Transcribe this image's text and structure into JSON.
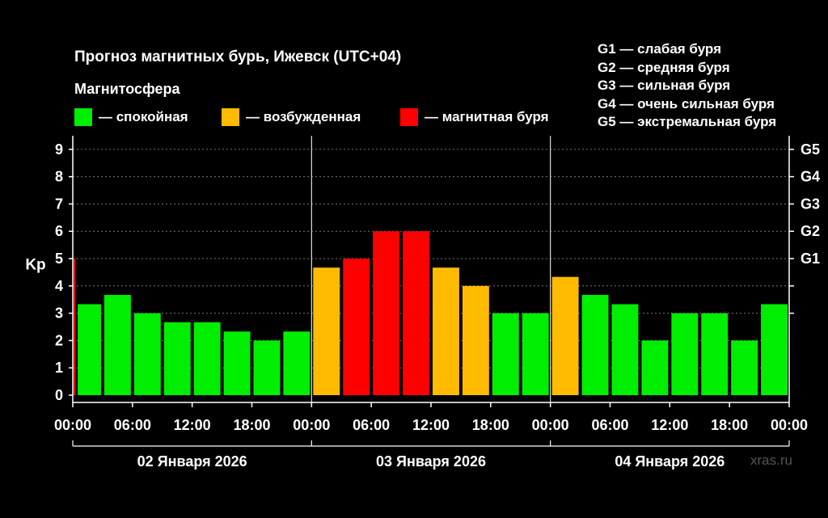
{
  "title": "Прогноз магнитных бурь, Ижевск (UTC+04)",
  "legend": {
    "heading": "Магнитосфера",
    "items": [
      {
        "label": "— спокойная",
        "color": "#00ee00"
      },
      {
        "label": "— возбужденная",
        "color": "#ffbb00"
      },
      {
        "label": "— магнитная буря",
        "color": "#ff0000"
      }
    ]
  },
  "g_scale": [
    "G1 — слабая буря",
    "G2 — средняя буря",
    "G3 — сильная буря",
    "G4 — очень сильная буря",
    "G5 — экстремальная буря"
  ],
  "watermark": "xras.ru",
  "chart_data": {
    "type": "bar",
    "ylabel": "Kp",
    "ylim": [
      0,
      9.5
    ],
    "y_ticks": [
      "0",
      "1",
      "2",
      "3",
      "4",
      "5",
      "6",
      "7",
      "8",
      "9"
    ],
    "right_ticks": [
      {
        "label": "G1",
        "kp": 5
      },
      {
        "label": "G2",
        "kp": 6
      },
      {
        "label": "G3",
        "kp": 7
      },
      {
        "label": "G4",
        "kp": 8
      },
      {
        "label": "G5",
        "kp": 9
      }
    ],
    "right_minor_ticks": [
      3,
      4
    ],
    "x_tick_labels": [
      "00:00",
      "06:00",
      "12:00",
      "18:00",
      "00:00",
      "06:00",
      "12:00",
      "18:00",
      "00:00",
      "06:00",
      "12:00",
      "18:00",
      "00:00"
    ],
    "days": [
      "02 Января 2026",
      "03 Января 2026",
      "04 Января 2026"
    ],
    "grid": "horizontal dashed",
    "bars": [
      {
        "start": "02 Января 2026 00:00",
        "hours": 0.33,
        "kp": 5.0,
        "level": "storm"
      },
      {
        "start": "02 Января 2026 00:20",
        "hours": 2.67,
        "kp": 3.33,
        "level": "quiet"
      },
      {
        "start": "02 Января 2026 03:00",
        "hours": 3,
        "kp": 3.67,
        "level": "quiet"
      },
      {
        "start": "02 Января 2026 06:00",
        "hours": 3,
        "kp": 3.0,
        "level": "quiet"
      },
      {
        "start": "02 Января 2026 09:00",
        "hours": 3,
        "kp": 2.67,
        "level": "quiet"
      },
      {
        "start": "02 Января 2026 12:00",
        "hours": 3,
        "kp": 2.67,
        "level": "quiet"
      },
      {
        "start": "02 Января 2026 15:00",
        "hours": 3,
        "kp": 2.33,
        "level": "quiet"
      },
      {
        "start": "02 Января 2026 18:00",
        "hours": 3,
        "kp": 2.0,
        "level": "quiet"
      },
      {
        "start": "02 Января 2026 21:00",
        "hours": 3,
        "kp": 2.33,
        "level": "quiet"
      },
      {
        "start": "03 Января 2026 00:00",
        "hours": 3,
        "kp": 4.67,
        "level": "unsettled"
      },
      {
        "start": "03 Января 2026 03:00",
        "hours": 3,
        "kp": 5.0,
        "level": "storm"
      },
      {
        "start": "03 Января 2026 06:00",
        "hours": 3,
        "kp": 6.0,
        "level": "storm"
      },
      {
        "start": "03 Января 2026 09:00",
        "hours": 3,
        "kp": 6.0,
        "level": "storm"
      },
      {
        "start": "03 Января 2026 12:00",
        "hours": 3,
        "kp": 4.67,
        "level": "unsettled"
      },
      {
        "start": "03 Января 2026 15:00",
        "hours": 3,
        "kp": 4.0,
        "level": "unsettled"
      },
      {
        "start": "03 Января 2026 18:00",
        "hours": 3,
        "kp": 3.0,
        "level": "quiet"
      },
      {
        "start": "03 Января 2026 21:00",
        "hours": 3,
        "kp": 3.0,
        "level": "quiet"
      },
      {
        "start": "04 Января 2026 00:00",
        "hours": 3,
        "kp": 4.33,
        "level": "unsettled"
      },
      {
        "start": "04 Января 2026 03:00",
        "hours": 3,
        "kp": 3.67,
        "level": "quiet"
      },
      {
        "start": "04 Января 2026 06:00",
        "hours": 3,
        "kp": 3.33,
        "level": "quiet"
      },
      {
        "start": "04 Января 2026 09:00",
        "hours": 3,
        "kp": 2.0,
        "level": "quiet"
      },
      {
        "start": "04 Января 2026 12:00",
        "hours": 3,
        "kp": 3.0,
        "level": "quiet"
      },
      {
        "start": "04 Января 2026 15:00",
        "hours": 3,
        "kp": 3.0,
        "level": "quiet"
      },
      {
        "start": "04 Января 2026 18:00",
        "hours": 3,
        "kp": 2.0,
        "level": "quiet"
      },
      {
        "start": "04 Января 2026 21:00",
        "hours": 3,
        "kp": 3.33,
        "level": "quiet"
      }
    ],
    "level_colors": {
      "quiet": "#00ee00",
      "unsettled": "#ffbb00",
      "storm": "#ff0000"
    }
  }
}
